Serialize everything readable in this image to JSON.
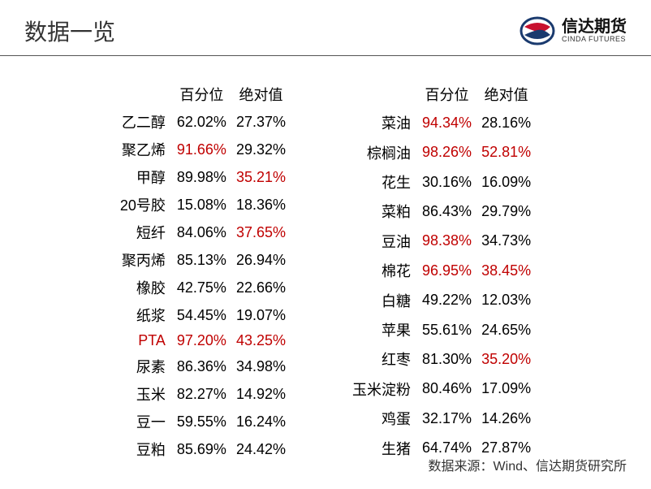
{
  "header": {
    "title": "数据一览",
    "logo_cn": "信达期货",
    "logo_en": "CINDA FUTURES"
  },
  "columns": [
    "百分位",
    "绝对值"
  ],
  "left_table": [
    {
      "name": "乙二醇",
      "pct": "62.02%",
      "abs": "27.37%",
      "pct_red": false,
      "abs_red": false,
      "name_red": false
    },
    {
      "name": "聚乙烯",
      "pct": "91.66%",
      "abs": "29.32%",
      "pct_red": true,
      "abs_red": false,
      "name_red": false
    },
    {
      "name": "甲醇",
      "pct": "89.98%",
      "abs": "35.21%",
      "pct_red": false,
      "abs_red": true,
      "name_red": false
    },
    {
      "name": "20号胶",
      "pct": "15.08%",
      "abs": "18.36%",
      "pct_red": false,
      "abs_red": false,
      "name_red": false
    },
    {
      "name": "短纤",
      "pct": "84.06%",
      "abs": "37.65%",
      "pct_red": false,
      "abs_red": true,
      "name_red": false
    },
    {
      "name": "聚丙烯",
      "pct": "85.13%",
      "abs": "26.94%",
      "pct_red": false,
      "abs_red": false,
      "name_red": false
    },
    {
      "name": "橡胶",
      "pct": "42.75%",
      "abs": "22.66%",
      "pct_red": false,
      "abs_red": false,
      "name_red": false
    },
    {
      "name": "纸浆",
      "pct": "54.45%",
      "abs": "19.07%",
      "pct_red": false,
      "abs_red": false,
      "name_red": false
    },
    {
      "name": "PTA",
      "pct": "97.20%",
      "abs": "43.25%",
      "pct_red": true,
      "abs_red": true,
      "name_red": true
    },
    {
      "name": "尿素",
      "pct": "86.36%",
      "abs": "34.98%",
      "pct_red": false,
      "abs_red": false,
      "name_red": false
    },
    {
      "name": "玉米",
      "pct": "82.27%",
      "abs": "14.92%",
      "pct_red": false,
      "abs_red": false,
      "name_red": false
    },
    {
      "name": "豆一",
      "pct": "59.55%",
      "abs": "16.24%",
      "pct_red": false,
      "abs_red": false,
      "name_red": false
    },
    {
      "name": "豆粕",
      "pct": "85.69%",
      "abs": "24.42%",
      "pct_red": false,
      "abs_red": false,
      "name_red": false
    }
  ],
  "right_table": [
    {
      "name": "菜油",
      "pct": "94.34%",
      "abs": "28.16%",
      "pct_red": true,
      "abs_red": false,
      "name_red": false
    },
    {
      "name": "棕榈油",
      "pct": "98.26%",
      "abs": "52.81%",
      "pct_red": true,
      "abs_red": true,
      "name_red": false
    },
    {
      "name": "花生",
      "pct": "30.16%",
      "abs": "16.09%",
      "pct_red": false,
      "abs_red": false,
      "name_red": false
    },
    {
      "name": "菜粕",
      "pct": "86.43%",
      "abs": "29.79%",
      "pct_red": false,
      "abs_red": false,
      "name_red": false
    },
    {
      "name": "豆油",
      "pct": "98.38%",
      "abs": "34.73%",
      "pct_red": true,
      "abs_red": false,
      "name_red": false
    },
    {
      "name": "棉花",
      "pct": "96.95%",
      "abs": "38.45%",
      "pct_red": true,
      "abs_red": true,
      "name_red": false
    },
    {
      "name": "白糖",
      "pct": "49.22%",
      "abs": "12.03%",
      "pct_red": false,
      "abs_red": false,
      "name_red": false
    },
    {
      "name": "苹果",
      "pct": "55.61%",
      "abs": "24.65%",
      "pct_red": false,
      "abs_red": false,
      "name_red": false
    },
    {
      "name": "红枣",
      "pct": "81.30%",
      "abs": "35.20%",
      "pct_red": false,
      "abs_red": true,
      "name_red": false
    },
    {
      "name": "玉米淀粉",
      "pct": "80.46%",
      "abs": "17.09%",
      "pct_red": false,
      "abs_red": false,
      "name_red": false
    },
    {
      "name": "鸡蛋",
      "pct": "32.17%",
      "abs": "14.26%",
      "pct_red": false,
      "abs_red": false,
      "name_red": false
    },
    {
      "name": "生猪",
      "pct": "64.74%",
      "abs": "27.87%",
      "pct_red": false,
      "abs_red": false,
      "name_red": false
    }
  ],
  "source": "数据来源：Wind、信达期货研究所",
  "colors": {
    "highlight": "#c00000",
    "text": "#000000",
    "border": "#555555"
  }
}
